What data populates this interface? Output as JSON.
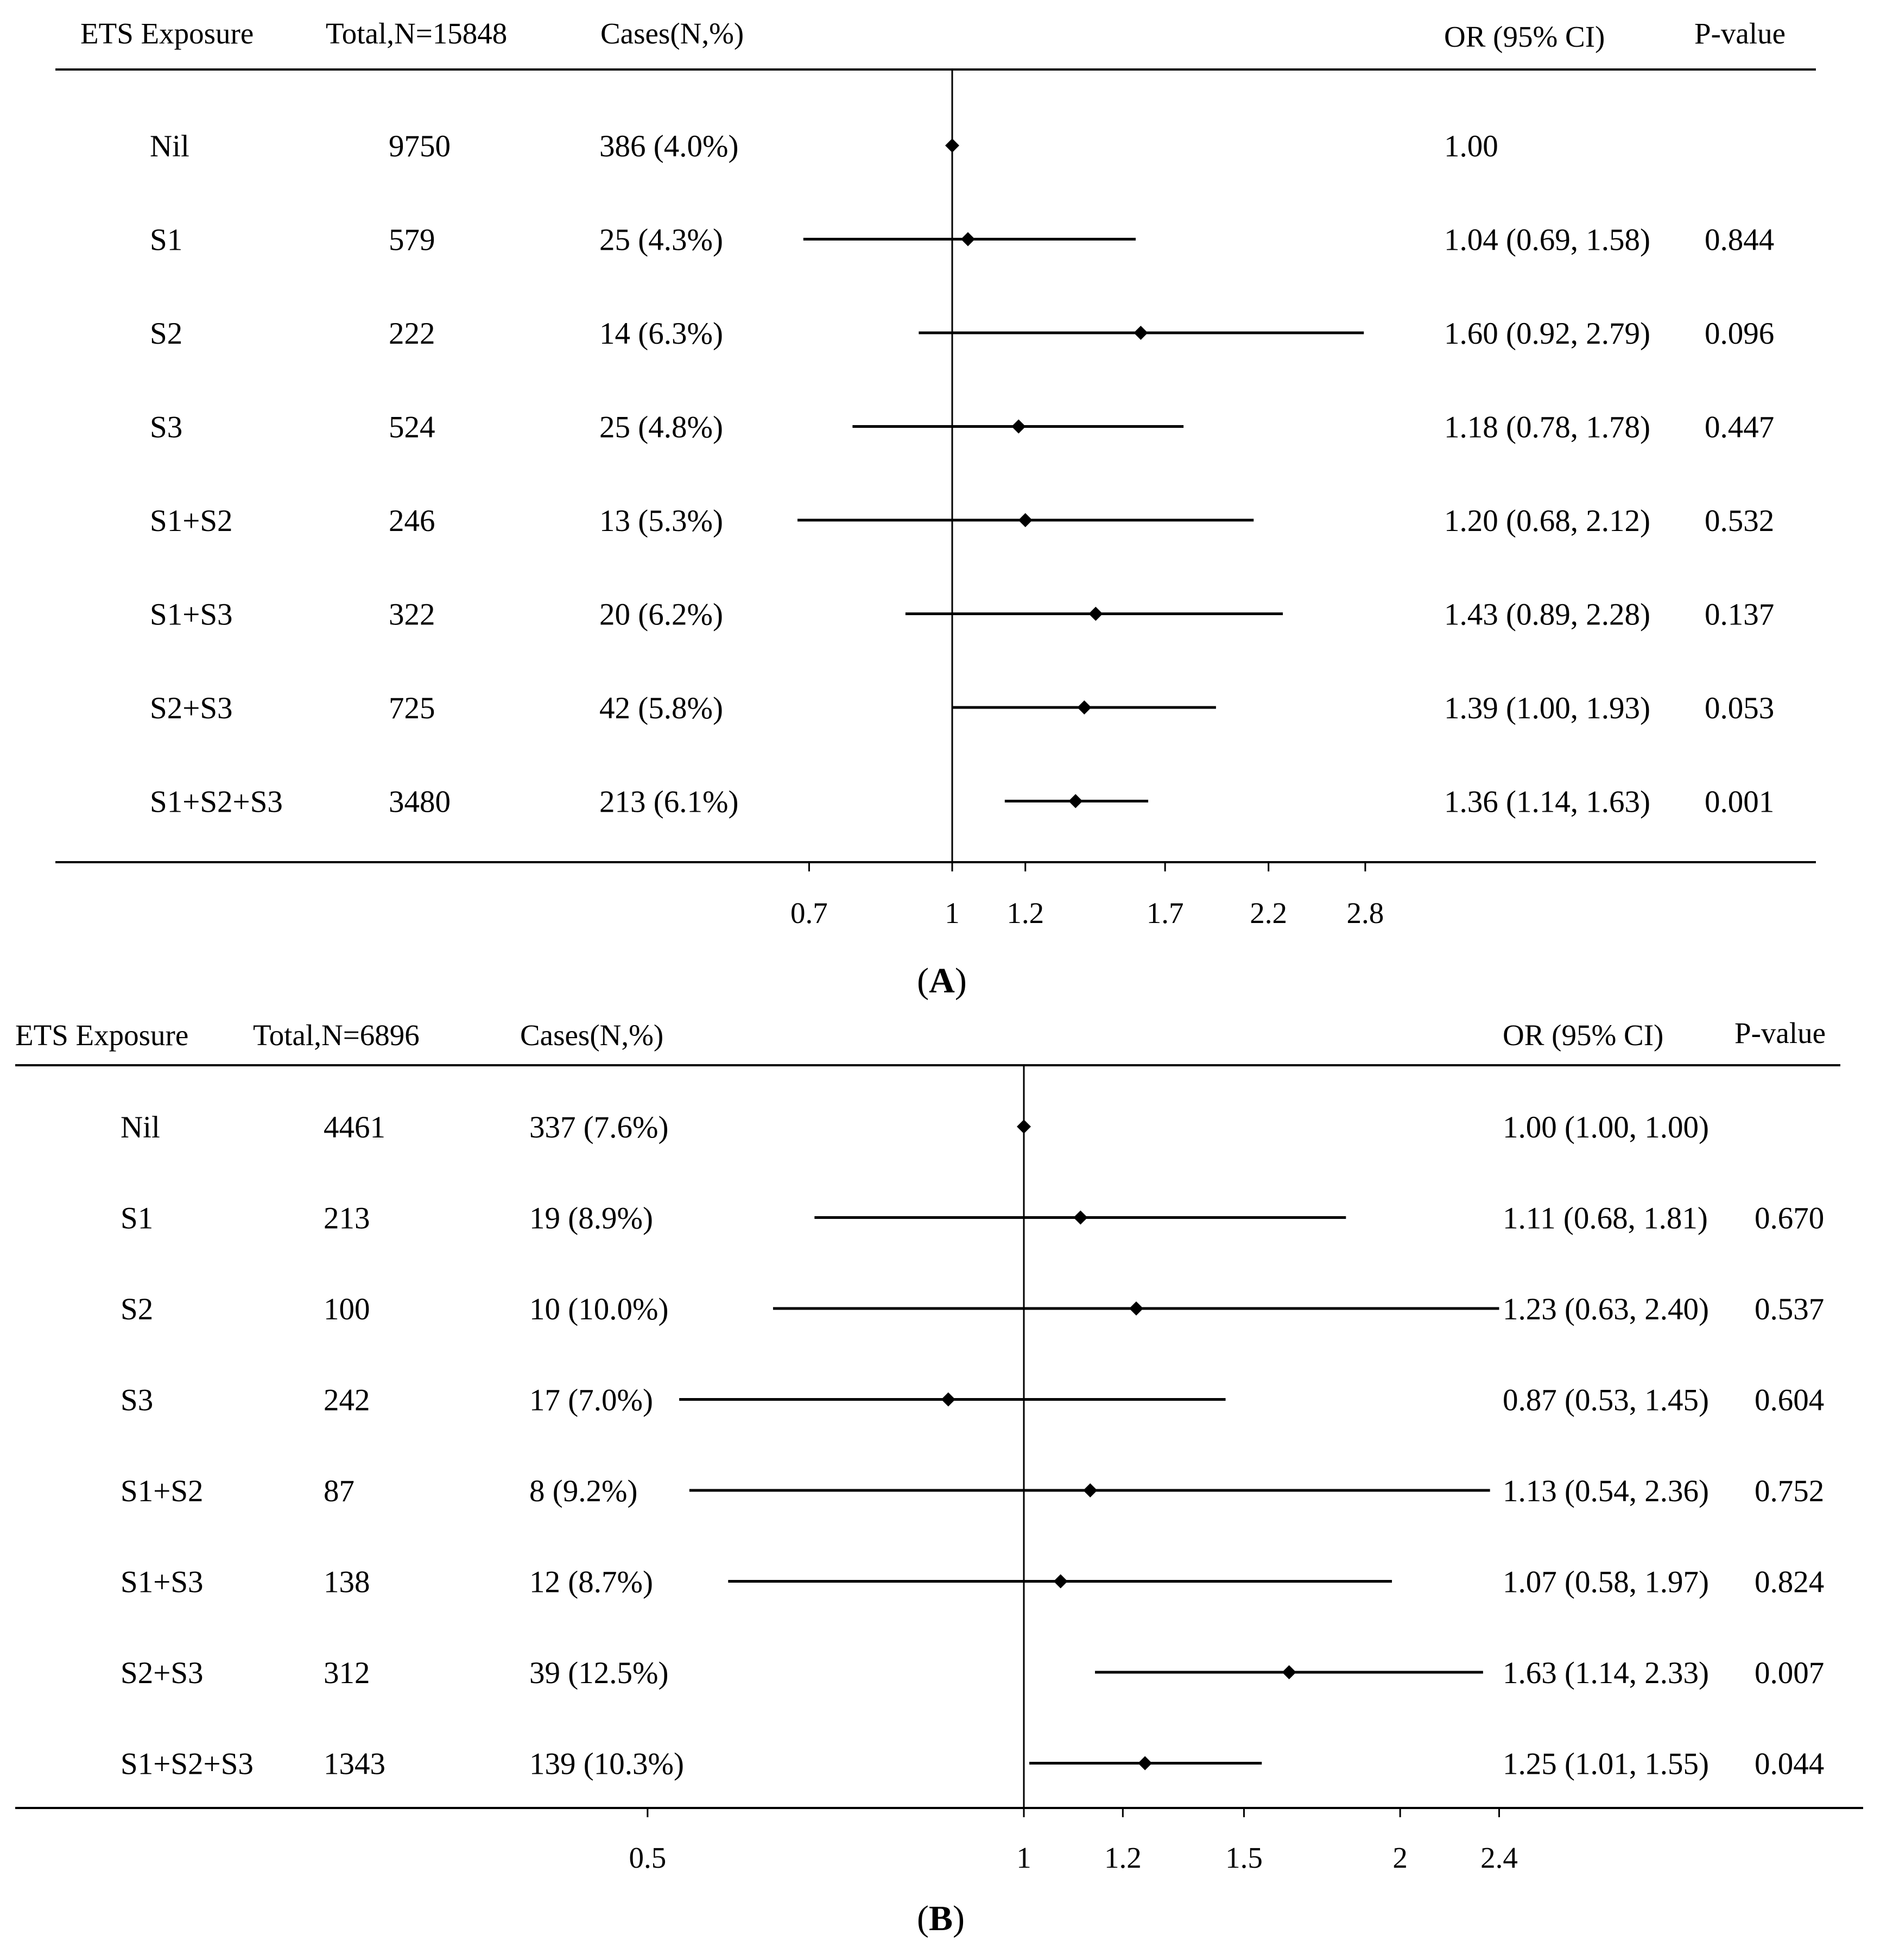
{
  "chart_data": [
    {
      "type": "forest",
      "panel_label": "A",
      "headers": {
        "exposure": "ETS Exposure",
        "total": "Total,N=15848",
        "cases": "Cases(N,%)",
        "or": "OR (95% CI)",
        "pvalue": "P-value"
      },
      "x_scale": "log",
      "xlim": [
        0.7,
        2.8
      ],
      "reference_value": 1,
      "x_ticks": [
        {
          "value": 0.7,
          "label": "0.7"
        },
        {
          "value": 1,
          "label": "1"
        },
        {
          "value": 1.2,
          "label": "1.2"
        },
        {
          "value": 1.7,
          "label": "1.7"
        },
        {
          "value": 2.2,
          "label": "2.2"
        },
        {
          "value": 2.8,
          "label": "2.8"
        }
      ],
      "rows": [
        {
          "exposure": "Nil",
          "total": "9750",
          "cases": "386 (4.0%)",
          "or_text": "1.00",
          "p_value": "",
          "or": 1.0,
          "lower": null,
          "upper": null
        },
        {
          "exposure": "S1",
          "total": "579",
          "cases": "25 (4.3%)",
          "or_text": "1.04 (0.69, 1.58)",
          "p_value": "0.844",
          "or": 1.04,
          "lower": 0.69,
          "upper": 1.58
        },
        {
          "exposure": "S2",
          "total": "222",
          "cases": "14 (6.3%)",
          "or_text": "1.60 (0.92, 2.79)",
          "p_value": "0.096",
          "or": 1.6,
          "lower": 0.92,
          "upper": 2.79
        },
        {
          "exposure": "S3",
          "total": "524",
          "cases": "25 (4.8%)",
          "or_text": "1.18 (0.78, 1.78)",
          "p_value": "0.447",
          "or": 1.18,
          "lower": 0.78,
          "upper": 1.78
        },
        {
          "exposure": "S1+S2",
          "total": "246",
          "cases": "13 (5.3%)",
          "or_text": "1.20 (0.68, 2.12)",
          "p_value": "0.532",
          "or": 1.2,
          "lower": 0.68,
          "upper": 2.12
        },
        {
          "exposure": "S1+S3",
          "total": "322",
          "cases": "20 (6.2%)",
          "or_text": "1.43 (0.89, 2.28)",
          "p_value": "0.137",
          "or": 1.43,
          "lower": 0.89,
          "upper": 2.28
        },
        {
          "exposure": "S2+S3",
          "total": "725",
          "cases": "42 (5.8%)",
          "or_text": "1.39 (1.00, 1.93)",
          "p_value": "0.053",
          "or": 1.39,
          "lower": 1.0,
          "upper": 1.93
        },
        {
          "exposure": "S1+S2+S3",
          "total": "3480",
          "cases": "213 (6.1%)",
          "or_text": "1.36 (1.14, 1.63)",
          "p_value": "0.001",
          "or": 1.36,
          "lower": 1.14,
          "upper": 1.63
        }
      ]
    },
    {
      "type": "forest",
      "panel_label": "B",
      "headers": {
        "exposure": "ETS Exposure",
        "total": "Total,N=6896",
        "cases": "Cases(N,%)",
        "or": "OR (95% CI)",
        "pvalue": "P-value"
      },
      "x_scale": "log",
      "xlim": [
        0.5,
        2.4
      ],
      "reference_value": 1,
      "x_ticks": [
        {
          "value": 0.5,
          "label": "0.5"
        },
        {
          "value": 1,
          "label": "1"
        },
        {
          "value": 1.2,
          "label": "1.2"
        },
        {
          "value": 1.5,
          "label": "1.5"
        },
        {
          "value": 2,
          "label": "2"
        },
        {
          "value": 2.4,
          "label": "2.4"
        }
      ],
      "rows": [
        {
          "exposure": "Nil",
          "total": "4461",
          "cases": "337 (7.6%)",
          "or_text": "1.00 (1.00, 1.00)",
          "p_value": "",
          "or": 1.0,
          "lower": 1.0,
          "upper": 1.0
        },
        {
          "exposure": "S1",
          "total": "213",
          "cases": "19 (8.9%)",
          "or_text": "1.11 (0.68, 1.81)",
          "p_value": "0.670",
          "or": 1.11,
          "lower": 0.68,
          "upper": 1.81
        },
        {
          "exposure": "S2",
          "total": "100",
          "cases": "10 (10.0%)",
          "or_text": "1.23 (0.63, 2.40)",
          "p_value": "0.537",
          "or": 1.23,
          "lower": 0.63,
          "upper": 2.4
        },
        {
          "exposure": "S3",
          "total": "242",
          "cases": "17 (7.0%)",
          "or_text": "0.87 (0.53, 1.45)",
          "p_value": "0.604",
          "or": 0.87,
          "lower": 0.53,
          "upper": 1.45
        },
        {
          "exposure": "S1+S2",
          "total": "87",
          "cases": "8 (9.2%)",
          "or_text": "1.13 (0.54, 2.36)",
          "p_value": "0.752",
          "or": 1.13,
          "lower": 0.54,
          "upper": 2.36
        },
        {
          "exposure": "S1+S3",
          "total": "138",
          "cases": "12 (8.7%)",
          "or_text": "1.07 (0.58, 1.97)",
          "p_value": "0.824",
          "or": 1.07,
          "lower": 0.58,
          "upper": 1.97
        },
        {
          "exposure": "S2+S3",
          "total": "312",
          "cases": "39 (12.5%)",
          "or_text": "1.63 (1.14, 2.33)",
          "p_value": "0.007",
          "or": 1.63,
          "lower": 1.14,
          "upper": 2.33
        },
        {
          "exposure": "S1+S2+S3",
          "total": "1343",
          "cases": "139 (10.3%)",
          "or_text": "1.25 (1.01, 1.55)",
          "p_value": "0.044",
          "or": 1.25,
          "lower": 1.01,
          "upper": 1.55
        }
      ]
    }
  ]
}
